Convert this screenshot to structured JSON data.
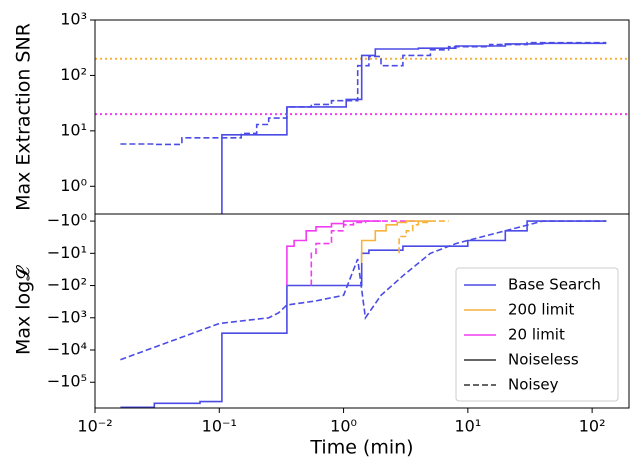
{
  "chart_data": [
    {
      "type": "line",
      "ylabel": "Max Extraction SNR",
      "xscale": "log",
      "yscale": "symlog",
      "xlim": [
        0.01,
        198
      ],
      "ylim": [
        0,
        1000
      ],
      "yticks": [
        {
          "value": 1,
          "label": "10⁰"
        },
        {
          "value": 10,
          "label": "10¹"
        },
        {
          "value": 100,
          "label": "10²"
        },
        {
          "value": 1000,
          "label": "10³"
        }
      ],
      "hlines": [
        {
          "value": 200,
          "color": "#f7b23b"
        },
        {
          "value": 20,
          "color": "#f23cf2"
        }
      ],
      "series": [
        {
          "color": "#4b4be6",
          "linestyle": "solid",
          "x": [
            0.105,
            0.105,
            0.35,
            0.35,
            1.05,
            1.05,
            1.4,
            1.4,
            1.8,
            1.8,
            4,
            4,
            8,
            8,
            20,
            20,
            40,
            40,
            130
          ],
          "values": [
            0,
            8.5,
            8.5,
            27,
            27,
            37,
            37,
            230,
            230,
            300,
            300,
            310,
            310,
            340,
            340,
            370,
            370,
            380,
            380
          ]
        },
        {
          "color": "#4b4be6",
          "linestyle": "dashed",
          "x": [
            0.016,
            0.03,
            0.03,
            0.05,
            0.05,
            0.15,
            0.15,
            0.2,
            0.2,
            0.25,
            0.25,
            0.35,
            0.35,
            0.55,
            0.55,
            0.8,
            0.8,
            1.3,
            1.3,
            1.6,
            1.6,
            2,
            2,
            3,
            3,
            5,
            5,
            7,
            7,
            15,
            15,
            30,
            30,
            130
          ],
          "values": [
            5.8,
            5.8,
            5.7,
            5.7,
            7.5,
            7.5,
            9,
            9,
            13,
            13,
            17,
            17,
            27,
            27,
            30,
            30,
            35,
            35,
            150,
            150,
            220,
            220,
            150,
            150,
            230,
            230,
            290,
            290,
            330,
            330,
            360,
            360,
            390,
            390
          ]
        }
      ]
    },
    {
      "type": "line",
      "ylabel": "Max log𝓛",
      "xlabel": "Time (min)",
      "xscale": "log",
      "yscale": "symlog",
      "xlim": [
        0.01,
        198
      ],
      "ylim": [
        -630000,
        -0.56
      ],
      "xticks": [
        {
          "value": 0.01,
          "label": "10⁻²"
        },
        {
          "value": 0.1,
          "label": "10⁻¹"
        },
        {
          "value": 1,
          "label": "10⁰"
        },
        {
          "value": 10,
          "label": "10¹"
        },
        {
          "value": 100,
          "label": "10²"
        }
      ],
      "yticks": [
        {
          "value": -1,
          "label": "−10⁰"
        },
        {
          "value": -10,
          "label": "−10¹"
        },
        {
          "value": -100,
          "label": "−10²"
        },
        {
          "value": -1000,
          "label": "−10³"
        },
        {
          "value": -10000,
          "label": "−10⁴"
        },
        {
          "value": -100000,
          "label": "−10⁵"
        }
      ],
      "legend_position": "lower right",
      "legend": [
        {
          "label": "Base Search",
          "color": "#4b4be6",
          "linestyle": "solid"
        },
        {
          "label": "200 limit",
          "color": "#f7b23b",
          "linestyle": "solid"
        },
        {
          "label": "20 limit",
          "color": "#f23cf2",
          "linestyle": "solid"
        },
        {
          "label": "Noiseless",
          "color": "#333333",
          "linestyle": "solid"
        },
        {
          "label": "Noisey",
          "color": "#333333",
          "linestyle": "dashed"
        }
      ],
      "series": [
        {
          "color": "#4b4be6",
          "linestyle": "solid",
          "x": [
            0.016,
            0.03,
            0.03,
            0.07,
            0.07,
            0.105,
            0.105,
            0.35,
            0.35,
            1.4,
            1.4,
            1.6,
            1.6,
            3,
            3,
            10,
            10,
            20,
            20,
            30,
            30,
            130
          ],
          "values": [
            -600000,
            -600000,
            -450000,
            -450000,
            -400000,
            -400000,
            -3000,
            -3000,
            -100,
            -100,
            -10,
            -10,
            -8,
            -8,
            -6,
            -6,
            -4,
            -4,
            -2,
            -2,
            -1,
            -1
          ]
        },
        {
          "color": "#4b4be6",
          "linestyle": "dashed",
          "x": [
            0.016,
            0.1,
            0.1,
            0.25,
            0.25,
            0.3,
            0.3,
            0.35,
            0.35,
            0.6,
            0.6,
            1.0,
            1.0,
            1.3,
            1.3,
            1.5,
            1.5,
            2,
            2,
            3,
            3,
            5,
            5,
            8,
            8,
            20,
            20,
            40,
            40,
            130
          ],
          "values": [
            -20000,
            -1500,
            -1500,
            -1000,
            -1000,
            -700,
            -700,
            -400,
            -400,
            -300,
            -300,
            -200,
            -200,
            -15,
            -15,
            -1000,
            -1000,
            -200,
            -200,
            -50,
            -50,
            -10,
            -10,
            -5,
            -5,
            -2,
            -2,
            -1,
            -1,
            -1
          ]
        },
        {
          "color": "#f23cf2",
          "linestyle": "solid",
          "x": [
            0.35,
            0.35,
            0.4,
            0.4,
            0.5,
            0.5,
            0.6,
            0.6,
            0.8,
            0.8,
            1.0,
            1.0,
            2
          ],
          "values": [
            -100,
            -6,
            -6,
            -4,
            -4,
            -2,
            -2,
            -1.5,
            -1.5,
            -1.2,
            -1.2,
            -1,
            -1
          ]
        },
        {
          "color": "#f23cf2",
          "linestyle": "dashed",
          "x": [
            0.55,
            0.55,
            0.6,
            0.6,
            0.8,
            0.8,
            1.0,
            1.0,
            1.2,
            1.2,
            1.5,
            1.5,
            4
          ],
          "values": [
            -100,
            -10,
            -10,
            -5,
            -5,
            -2,
            -2,
            -1.3,
            -1.3,
            -1.1,
            -1.1,
            -1,
            -1
          ]
        },
        {
          "color": "#f7b23b",
          "linestyle": "solid",
          "x": [
            1.4,
            1.4,
            1.8,
            1.8,
            2.2,
            2.2,
            2.7,
            2.7,
            3.2,
            3.2,
            5
          ],
          "values": [
            -20,
            -4,
            -4,
            -2,
            -2,
            -1.3,
            -1.3,
            -1.1,
            -1.1,
            -1,
            -1
          ]
        },
        {
          "color": "#f7b23b",
          "linestyle": "dashed",
          "x": [
            2.8,
            2.8,
            3.2,
            3.2,
            3.6,
            3.6,
            4,
            4,
            5,
            5,
            7
          ],
          "values": [
            -10,
            -3,
            -3,
            -2,
            -2,
            -1.3,
            -1.3,
            -1.1,
            -1.1,
            -1,
            -1
          ]
        }
      ]
    }
  ]
}
